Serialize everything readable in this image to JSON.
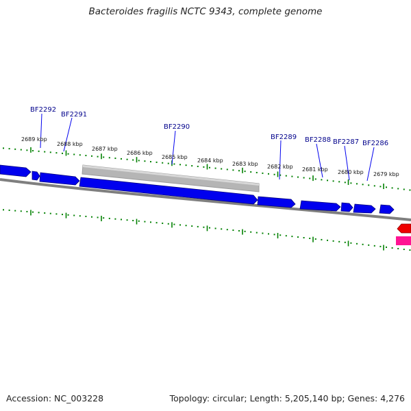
{
  "header": {
    "title": "Bacteroides fragilis NCTC 9343, complete genome"
  },
  "footer": {
    "accession": "Accession: NC_003228",
    "summary": "Topology: circular; Length: 5,205,140 bp; Genes: 4,276"
  },
  "colors": {
    "gene_forward": "#0000ee",
    "gene_feature": "#b8b8b8",
    "gene_red": "#ee0000",
    "gene_pink": "#ff1493",
    "backbone": "#808080",
    "ticks": "#008000",
    "gene_label": "#00008b"
  },
  "scale": {
    "labels": [
      "2689 kbp",
      "2688 kbp",
      "2687 kbp",
      "2686 kbp",
      "2685 kbp",
      "2684 kbp",
      "2683 kbp",
      "2682 kbp",
      "2681 kbp",
      "2680 kbp",
      "2679 kbp"
    ]
  },
  "genes": {
    "labels": [
      "BF2292",
      "BF2291",
      "BF2290",
      "BF2289",
      "BF2288",
      "BF2287",
      "BF2286"
    ]
  }
}
